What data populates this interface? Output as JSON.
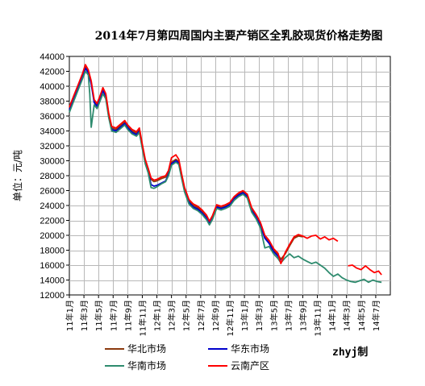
{
  "chart_data": {
    "type": "line",
    "title": "2014年7月第四周国内主要产销区全乳胶现货价格走势图",
    "ylabel": "单位：元/吨",
    "xlabel": "",
    "ylim": [
      12000,
      44000
    ],
    "yticks": [
      12000,
      14000,
      16000,
      18000,
      20000,
      22000,
      24000,
      26000,
      28000,
      30000,
      32000,
      34000,
      36000,
      38000,
      40000,
      42000,
      44000
    ],
    "ytick_labels": [
      "12000",
      "14000",
      "16000",
      "18000",
      "20000",
      "22000",
      "24000",
      "26000",
      "28000",
      "30000",
      "32000",
      "34000",
      "36000",
      "38000",
      "40000",
      "42000",
      "44000"
    ],
    "xticks": [
      "11年1月",
      "11年3月",
      "11年5月",
      "11年7月",
      "11年9月",
      "11年11月",
      "12年1月",
      "12年3月",
      "12年5月",
      "12年7月",
      "12年9月",
      "12年11月",
      "13年1月",
      "13年3月",
      "13年5月",
      "13年7月",
      "13年9月",
      "13年11月",
      "14年1月",
      "14年3月",
      "14年5月",
      "14年7月"
    ],
    "grid": true,
    "legend_placement": "bottom",
    "watermark": "zhyj制",
    "series": [
      {
        "name": "华北市场",
        "color": "#8B3A0E",
        "points": [
          [
            0,
            37000
          ],
          [
            0.3,
            38500
          ],
          [
            0.6,
            40000
          ],
          [
            0.9,
            41500
          ],
          [
            1.1,
            42600
          ],
          [
            1.3,
            42000
          ],
          [
            1.5,
            40500
          ],
          [
            1.7,
            38000
          ],
          [
            1.9,
            37500
          ],
          [
            2.1,
            38500
          ],
          [
            2.3,
            39600
          ],
          [
            2.5,
            38800
          ],
          [
            2.7,
            36200
          ],
          [
            2.9,
            34400
          ],
          [
            3.2,
            34200
          ],
          [
            3.5,
            34700
          ],
          [
            3.8,
            35200
          ],
          [
            4.0,
            34600
          ],
          [
            4.3,
            34000
          ],
          [
            4.6,
            33700
          ],
          [
            4.8,
            34200
          ],
          [
            5.0,
            32000
          ],
          [
            5.2,
            30000
          ],
          [
            5.4,
            28800
          ],
          [
            5.6,
            27500
          ],
          [
            5.8,
            27200
          ],
          [
            6.0,
            27300
          ],
          [
            6.3,
            27600
          ],
          [
            6.6,
            27800
          ],
          [
            6.8,
            28500
          ],
          [
            7.0,
            29800
          ],
          [
            7.3,
            30200
          ],
          [
            7.5,
            29900
          ],
          [
            7.7,
            28000
          ],
          [
            7.9,
            26200
          ],
          [
            8.2,
            24600
          ],
          [
            8.5,
            24000
          ],
          [
            8.8,
            23700
          ],
          [
            9.1,
            23200
          ],
          [
            9.4,
            22500
          ],
          [
            9.6,
            21700
          ],
          [
            9.8,
            22400
          ],
          [
            10.1,
            23900
          ],
          [
            10.4,
            23700
          ],
          [
            10.7,
            23900
          ],
          [
            11.0,
            24200
          ],
          [
            11.3,
            25000
          ],
          [
            11.6,
            25500
          ],
          [
            11.9,
            25800
          ],
          [
            12.2,
            25300
          ],
          [
            12.5,
            23500
          ],
          [
            12.8,
            22600
          ],
          [
            13.1,
            21500
          ],
          [
            13.4,
            19800
          ],
          [
            13.7,
            19100
          ],
          [
            14.0,
            18000
          ],
          [
            14.3,
            17400
          ],
          [
            14.5,
            16800
          ],
          [
            14.8,
            17500
          ],
          [
            15.1,
            18600
          ],
          [
            15.4,
            19600
          ],
          [
            15.7,
            19900
          ],
          [
            16.0,
            19800
          ]
        ]
      },
      {
        "name": "华东市场",
        "color": "#0000CC",
        "points": [
          [
            0,
            36800
          ],
          [
            0.3,
            38300
          ],
          [
            0.6,
            39800
          ],
          [
            0.9,
            41300
          ],
          [
            1.1,
            42400
          ],
          [
            1.3,
            41800
          ],
          [
            1.5,
            40300
          ],
          [
            1.7,
            37800
          ],
          [
            1.9,
            37300
          ],
          [
            2.1,
            38300
          ],
          [
            2.3,
            39400
          ],
          [
            2.5,
            38600
          ],
          [
            2.7,
            36000
          ],
          [
            2.9,
            34200
          ],
          [
            3.2,
            34000
          ],
          [
            3.5,
            34500
          ],
          [
            3.8,
            35000
          ],
          [
            4.0,
            34400
          ],
          [
            4.3,
            33800
          ],
          [
            4.6,
            33500
          ],
          [
            4.8,
            34000
          ],
          [
            5.0,
            31800
          ],
          [
            5.2,
            29800
          ],
          [
            5.4,
            28600
          ],
          [
            5.6,
            26800
          ],
          [
            5.8,
            26600
          ],
          [
            6.0,
            26700
          ],
          [
            6.3,
            27000
          ],
          [
            6.6,
            27300
          ],
          [
            6.8,
            28200
          ],
          [
            7.0,
            29600
          ],
          [
            7.3,
            30000
          ],
          [
            7.5,
            29700
          ],
          [
            7.7,
            27800
          ],
          [
            7.9,
            26000
          ],
          [
            8.2,
            24400
          ],
          [
            8.5,
            23800
          ],
          [
            8.8,
            23500
          ],
          [
            9.1,
            23000
          ],
          [
            9.4,
            22300
          ],
          [
            9.6,
            21600
          ],
          [
            9.8,
            22300
          ],
          [
            10.1,
            23800
          ],
          [
            10.4,
            23600
          ],
          [
            10.7,
            23800
          ],
          [
            11.0,
            24100
          ],
          [
            11.3,
            24900
          ],
          [
            11.6,
            25400
          ],
          [
            11.9,
            25700
          ],
          [
            12.2,
            25200
          ],
          [
            12.5,
            23300
          ],
          [
            12.8,
            22400
          ],
          [
            13.1,
            21300
          ],
          [
            13.4,
            19600
          ],
          [
            13.7,
            18900
          ],
          [
            14.0,
            17800
          ],
          [
            14.3,
            17200
          ],
          [
            14.5,
            16600
          ]
        ]
      },
      {
        "name": "华南市场",
        "color": "#2E8B6E",
        "points": [
          [
            0,
            36500
          ],
          [
            0.3,
            38000
          ],
          [
            0.6,
            39500
          ],
          [
            0.9,
            41000
          ],
          [
            1.1,
            42000
          ],
          [
            1.3,
            41500
          ],
          [
            1.4,
            39000
          ],
          [
            1.5,
            34500
          ],
          [
            1.7,
            37500
          ],
          [
            1.9,
            37000
          ],
          [
            2.1,
            38000
          ],
          [
            2.3,
            39000
          ],
          [
            2.5,
            38300
          ],
          [
            2.7,
            35800
          ],
          [
            2.9,
            34000
          ],
          [
            3.2,
            33800
          ],
          [
            3.5,
            34300
          ],
          [
            3.8,
            34800
          ],
          [
            4.0,
            34200
          ],
          [
            4.3,
            33600
          ],
          [
            4.6,
            33300
          ],
          [
            4.8,
            33800
          ],
          [
            5.0,
            31600
          ],
          [
            5.2,
            29600
          ],
          [
            5.4,
            28400
          ],
          [
            5.6,
            26400
          ],
          [
            5.8,
            26300
          ],
          [
            6.0,
            26500
          ],
          [
            6.3,
            26900
          ],
          [
            6.6,
            27200
          ],
          [
            6.8,
            28000
          ],
          [
            7.0,
            29400
          ],
          [
            7.3,
            29800
          ],
          [
            7.5,
            29500
          ],
          [
            7.7,
            27600
          ],
          [
            7.9,
            25800
          ],
          [
            8.2,
            24200
          ],
          [
            8.5,
            23600
          ],
          [
            8.8,
            23300
          ],
          [
            9.1,
            22800
          ],
          [
            9.4,
            22100
          ],
          [
            9.6,
            21400
          ],
          [
            9.8,
            22100
          ],
          [
            10.1,
            23600
          ],
          [
            10.4,
            23400
          ],
          [
            10.7,
            23600
          ],
          [
            11.0,
            23900
          ],
          [
            11.3,
            24700
          ],
          [
            11.6,
            25200
          ],
          [
            11.9,
            25500
          ],
          [
            12.2,
            25000
          ],
          [
            12.5,
            23100
          ],
          [
            12.8,
            22200
          ],
          [
            13.1,
            21000
          ],
          [
            13.4,
            18300
          ],
          [
            13.7,
            18500
          ],
          [
            14.0,
            17500
          ],
          [
            14.3,
            16900
          ],
          [
            14.5,
            16300
          ],
          [
            14.8,
            17000
          ],
          [
            15.1,
            17500
          ],
          [
            15.4,
            17000
          ],
          [
            15.7,
            17200
          ],
          [
            16.0,
            16800
          ],
          [
            16.3,
            16500
          ],
          [
            16.6,
            16200
          ],
          [
            16.9,
            16400
          ],
          [
            17.2,
            16000
          ],
          [
            17.5,
            15600
          ],
          [
            17.8,
            15000
          ],
          [
            18.1,
            14500
          ],
          [
            18.4,
            14800
          ],
          [
            18.7,
            14300
          ],
          [
            19.0,
            14000
          ],
          [
            19.3,
            13800
          ],
          [
            19.6,
            13700
          ],
          [
            19.9,
            13900
          ],
          [
            20.2,
            14100
          ],
          [
            20.5,
            13700
          ],
          [
            20.8,
            14000
          ],
          [
            21.1,
            13800
          ],
          [
            21.4,
            13700
          ]
        ]
      },
      {
        "name": "云南产区",
        "color": "#FF0000",
        "points": [
          [
            0,
            37200
          ],
          [
            0.3,
            38700
          ],
          [
            0.6,
            40200
          ],
          [
            0.9,
            41700
          ],
          [
            1.1,
            42900
          ],
          [
            1.3,
            42200
          ],
          [
            1.5,
            40700
          ],
          [
            1.7,
            38200
          ],
          [
            1.9,
            37700
          ],
          [
            2.1,
            38700
          ],
          [
            2.3,
            39800
          ],
          [
            2.5,
            39000
          ],
          [
            2.7,
            36400
          ],
          [
            2.9,
            34600
          ],
          [
            3.2,
            34400
          ],
          [
            3.5,
            34900
          ],
          [
            3.8,
            35400
          ],
          [
            4.0,
            34800
          ],
          [
            4.3,
            34200
          ],
          [
            4.6,
            33900
          ],
          [
            4.8,
            34400
          ],
          [
            5.0,
            32200
          ],
          [
            5.2,
            30200
          ],
          [
            5.4,
            29000
          ],
          [
            5.6,
            27700
          ],
          [
            5.8,
            27400
          ],
          [
            6.0,
            27500
          ],
          [
            6.3,
            27800
          ],
          [
            6.6,
            28000
          ],
          [
            6.8,
            28700
          ],
          [
            7.0,
            30400
          ],
          [
            7.3,
            30800
          ],
          [
            7.5,
            30200
          ],
          [
            7.7,
            28200
          ],
          [
            7.9,
            26400
          ],
          [
            8.2,
            24800
          ],
          [
            8.5,
            24200
          ],
          [
            8.8,
            23900
          ],
          [
            9.1,
            23400
          ],
          [
            9.4,
            22700
          ],
          [
            9.6,
            21900
          ],
          [
            9.8,
            22600
          ],
          [
            10.1,
            24100
          ],
          [
            10.4,
            23900
          ],
          [
            10.7,
            24100
          ],
          [
            11.0,
            24400
          ],
          [
            11.3,
            25200
          ],
          [
            11.6,
            25700
          ],
          [
            11.9,
            26000
          ],
          [
            12.2,
            25500
          ],
          [
            12.5,
            23700
          ],
          [
            12.8,
            22800
          ],
          [
            13.1,
            21700
          ],
          [
            13.4,
            20000
          ],
          [
            13.7,
            19300
          ],
          [
            14.0,
            18200
          ],
          [
            14.3,
            17600
          ],
          [
            14.5,
            16200
          ],
          [
            14.8,
            17700
          ],
          [
            15.1,
            18800
          ],
          [
            15.4,
            19800
          ],
          [
            15.7,
            20100
          ],
          [
            16.0,
            19900
          ],
          [
            16.3,
            19600
          ],
          [
            16.6,
            19900
          ],
          [
            16.9,
            20000
          ],
          [
            17.2,
            19500
          ],
          [
            17.5,
            19800
          ],
          [
            17.8,
            19400
          ],
          [
            18.1,
            19600
          ],
          [
            18.4,
            19200
          ],
          [
            18.6,
            null
          ],
          [
            18.9,
            20000
          ],
          [
            19.0,
            null
          ],
          [
            19.1,
            15900
          ],
          [
            19.4,
            16000
          ],
          [
            19.7,
            15600
          ],
          [
            20.0,
            15400
          ],
          [
            20.3,
            15900
          ],
          [
            20.6,
            15400
          ],
          [
            20.9,
            15000
          ],
          [
            21.2,
            15200
          ],
          [
            21.4,
            14700
          ]
        ]
      }
    ]
  }
}
